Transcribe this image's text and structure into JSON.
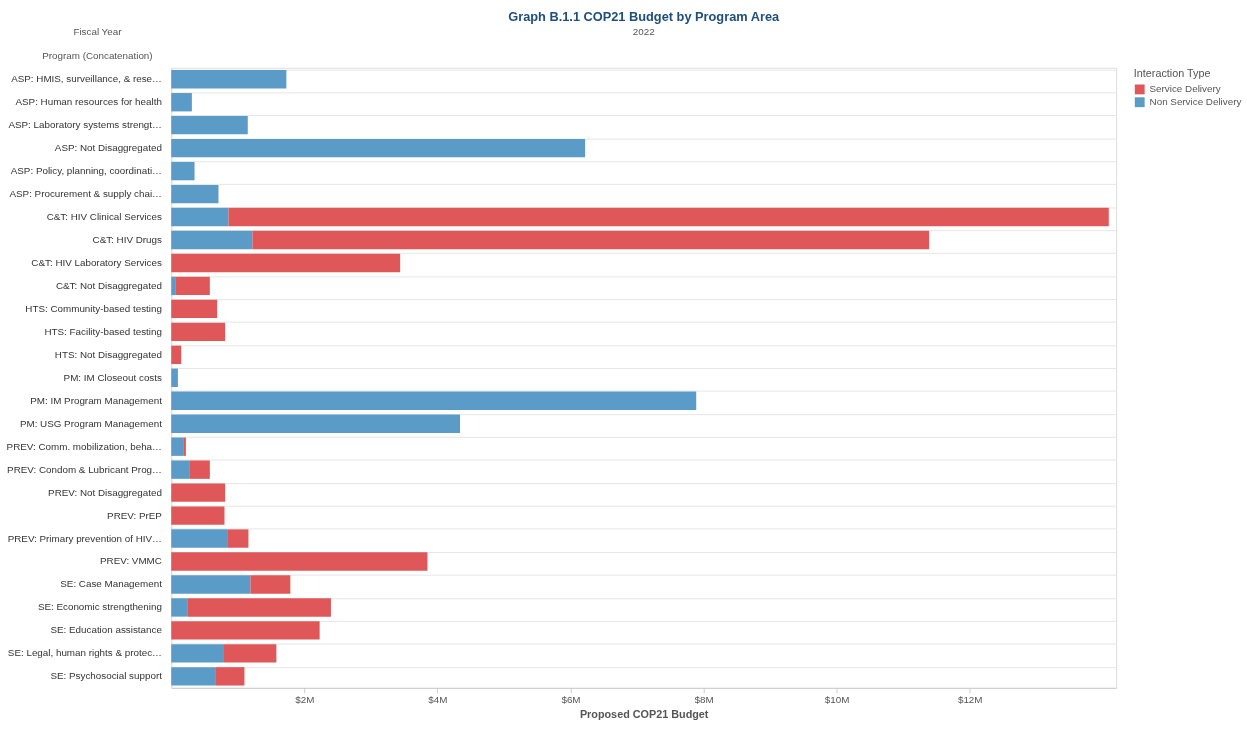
{
  "chart_data": {
    "type": "bar",
    "orientation": "horizontal",
    "stacked": true,
    "title": "Graph B.1.1 COP21 Budget by Program Area",
    "xlabel": "Proposed COP21 Budget",
    "ylabel": "Program (Concatenation)",
    "annotations": [
      "Fiscal Year",
      "2022"
    ],
    "legend_title": "Interaction Type",
    "legend": "right",
    "grid": "y",
    "categories": [
      "ASP: HMIS, surveillance, & rese…",
      "ASP: Human resources for health",
      "ASP: Laboratory systems strengt…",
      "ASP: Not Disaggregated",
      "ASP: Policy, planning, coordinati…",
      "ASP: Procurement & supply chai…",
      "C&T: HIV Clinical Services",
      "C&T: HIV Drugs",
      "C&T: HIV Laboratory Services",
      "C&T: Not Disaggregated",
      "HTS: Community-based testing",
      "HTS: Facility-based testing",
      "HTS: Not Disaggregated",
      "PM: IM Closeout costs",
      "PM: IM Program Management",
      "PM: USG Program Management",
      "PREV: Comm. mobilization, beha…",
      "PREV: Condom & Lubricant Prog…",
      "PREV: Not Disaggregated",
      "PREV: PrEP",
      "PREV: Primary prevention of HIV…",
      "PREV: VMMC",
      "SE: Case Management",
      "SE: Economic strengthening",
      "SE: Education assistance",
      "SE: Legal, human rights & protec…",
      "SE: Psychosocial support"
    ],
    "series": [
      {
        "name": "Non Service Delivery",
        "color": "#5b9bc8",
        "values": [
          1.73,
          0.31,
          1.15,
          6.22,
          0.35,
          0.71,
          0.86,
          1.22,
          null,
          0.06,
          null,
          null,
          null,
          0.1,
          7.89,
          4.34,
          0.19,
          0.27,
          null,
          null,
          0.84,
          null,
          1.19,
          0.25,
          null,
          0.78,
          0.66
        ]
      },
      {
        "name": "Service Delivery",
        "color": "#e05759",
        "values": [
          null,
          null,
          null,
          null,
          null,
          null,
          13.23,
          10.17,
          3.44,
          0.52,
          0.69,
          0.81,
          0.15,
          null,
          null,
          null,
          0.03,
          0.31,
          0.81,
          0.8,
          0.32,
          3.85,
          0.6,
          2.15,
          2.23,
          0.8,
          0.44
        ]
      }
    ],
    "xlim": [
      0,
      14.2
    ],
    "xticks": [
      {
        "value": 2,
        "label": "$2M"
      },
      {
        "value": 4,
        "label": "$4M"
      },
      {
        "value": 6,
        "label": "$6M"
      },
      {
        "value": 8,
        "label": "$8M"
      },
      {
        "value": 10,
        "label": "$10M"
      },
      {
        "value": 12,
        "label": "$12M"
      }
    ]
  }
}
